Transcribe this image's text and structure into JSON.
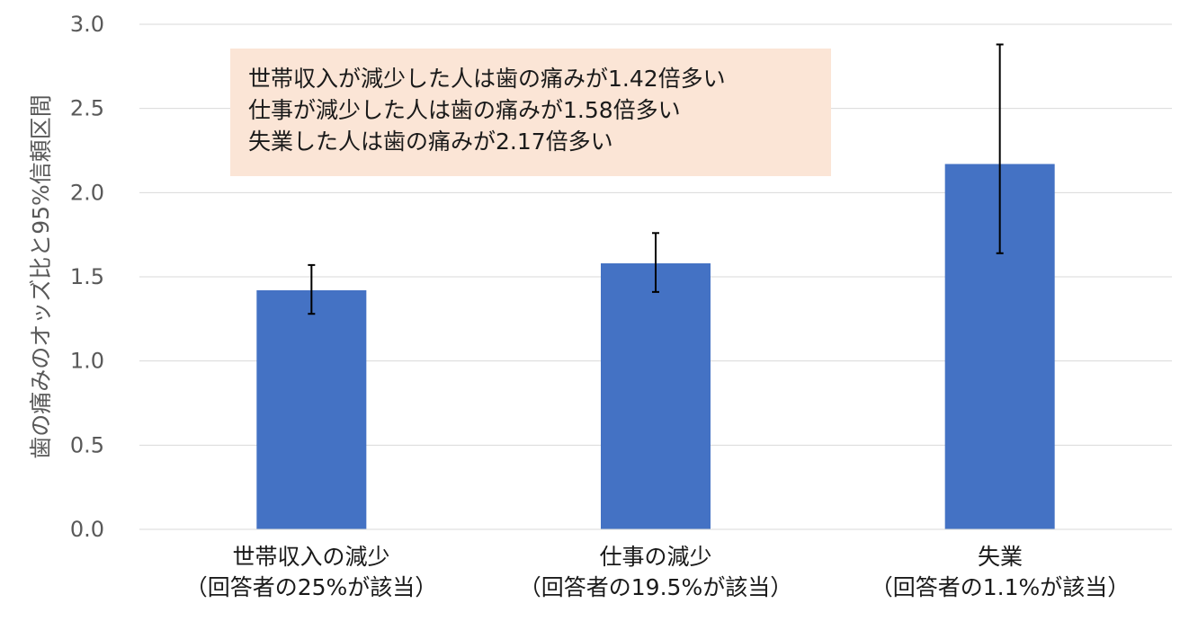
{
  "chart_data": {
    "type": "bar",
    "categories": [
      [
        "世帯収入の減少",
        "（回答者の25%が該当）"
      ],
      [
        "仕事の減少",
        "（回答者の19.5%が該当）"
      ],
      [
        "失業",
        "（回答者の1.1%が該当）"
      ]
    ],
    "values": [
      1.42,
      1.58,
      2.17
    ],
    "error_low": [
      1.28,
      1.41,
      1.64
    ],
    "error_high": [
      1.57,
      1.76,
      2.88
    ],
    "ylabel": "歯の痛みのオッズ比と95%信頼区間",
    "ylim": [
      0,
      3.0
    ],
    "yticks": [
      "0.0",
      "0.5",
      "1.0",
      "1.5",
      "2.0",
      "2.5",
      "3.0"
    ],
    "grid": true,
    "bar_color": "#4472c4",
    "annotation": [
      "世帯収入が減少した人は歯の痛みが1.42倍多い",
      "仕事が減少した人は歯の痛みが1.58倍多い",
      "失業した人は歯の痛みが2.17倍多い"
    ],
    "annotation_bg": "#fbe5d6"
  }
}
